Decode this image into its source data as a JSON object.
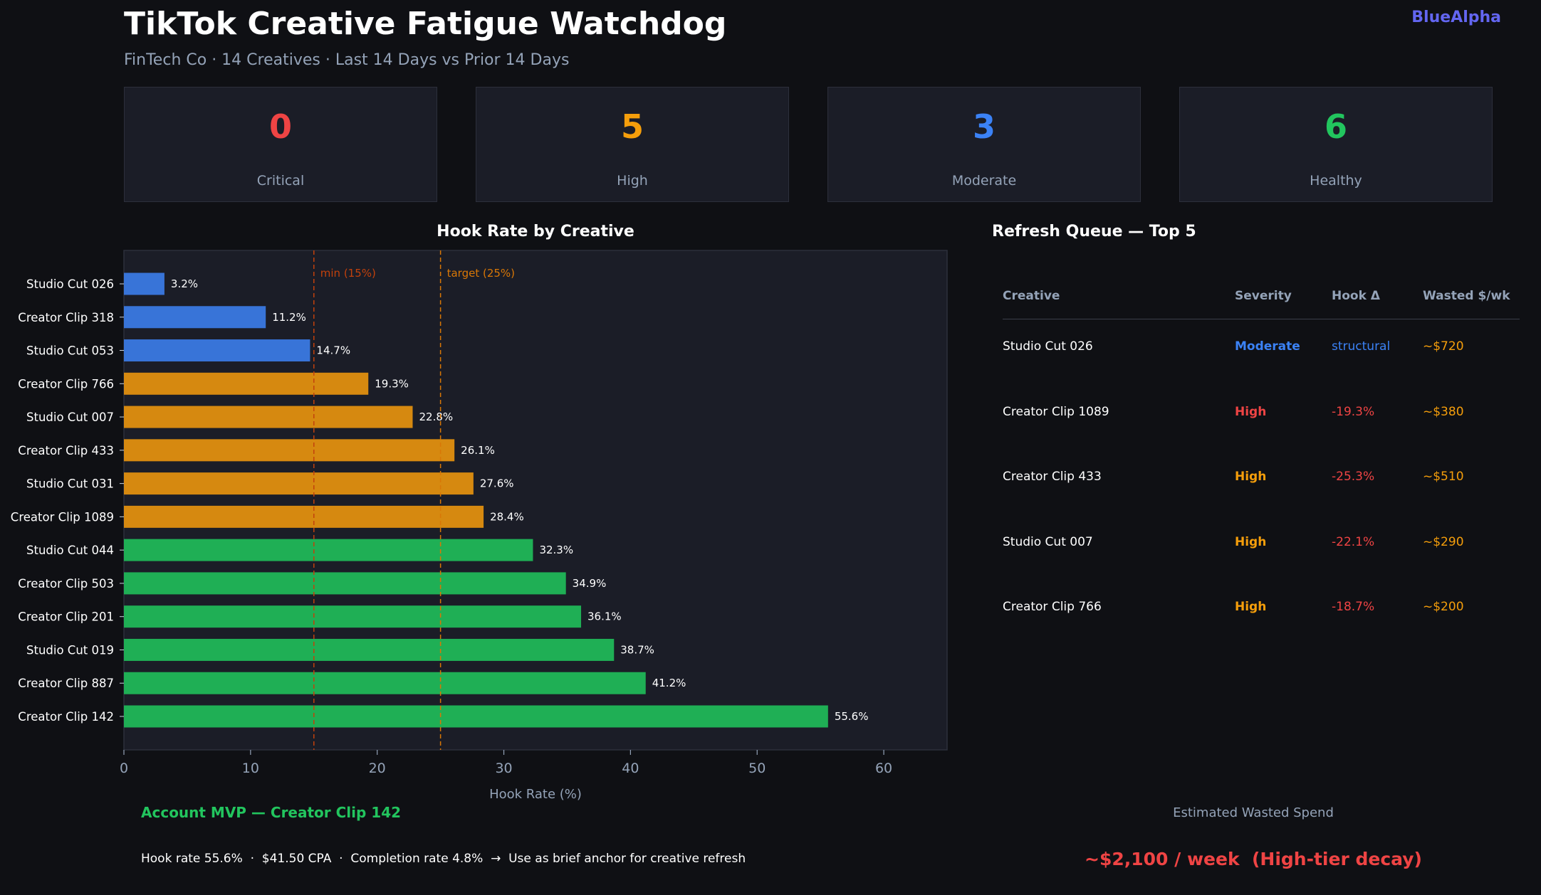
{
  "header": {
    "title": "TikTok Creative Fatigue Watchdog",
    "subtitle": "FinTech Co · 14 Creatives · Last 14 Days vs Prior 14 Days",
    "brand": "BlueAlpha"
  },
  "summary_cards": [
    {
      "value": "0",
      "label": "Critical",
      "color": "#ef4444"
    },
    {
      "value": "5",
      "label": "High",
      "color": "#f59e0b"
    },
    {
      "value": "3",
      "label": "Moderate",
      "color": "#3b82f6"
    },
    {
      "value": "6",
      "label": "Healthy",
      "color": "#22c55e"
    }
  ],
  "chart_data": {
    "type": "bar",
    "orientation": "horizontal",
    "title": "Hook Rate by Creative",
    "xlabel": "Hook Rate (%)",
    "ylabel": "",
    "xlim": [
      0,
      65
    ],
    "xticks": [
      0,
      10,
      20,
      30,
      40,
      50,
      60
    ],
    "grid": false,
    "categories": [
      "Studio Cut 026",
      "Creator Clip 318",
      "Studio Cut 053",
      "Creator Clip 766",
      "Studio Cut 007",
      "Creator Clip 433",
      "Studio Cut 031",
      "Creator Clip 1089",
      "Studio Cut 044",
      "Creator Clip 503",
      "Creator Clip 201",
      "Studio Cut 019",
      "Creator Clip 887",
      "Creator Clip 142"
    ],
    "values": [
      3.2,
      11.2,
      14.7,
      19.3,
      22.8,
      26.1,
      27.6,
      28.4,
      32.3,
      34.9,
      36.1,
      38.7,
      41.2,
      55.6
    ],
    "value_labels": [
      "3.2%",
      "11.2%",
      "14.7%",
      "19.3%",
      "22.8%",
      "26.1%",
      "27.6%",
      "28.4%",
      "32.3%",
      "34.9%",
      "36.1%",
      "38.7%",
      "41.2%",
      "55.6%"
    ],
    "bar_colors": [
      "#3874d8",
      "#3874d8",
      "#3874d8",
      "#d68910",
      "#d68910",
      "#d68910",
      "#d68910",
      "#d68910",
      "#1faf55",
      "#1faf55",
      "#1faf55",
      "#1faf55",
      "#1faf55",
      "#1faf55"
    ],
    "reference_lines": [
      {
        "x": 15,
        "label": "min (15%)",
        "color": "#c2410c"
      },
      {
        "x": 25,
        "label": "target (25%)",
        "color": "#d97706"
      }
    ]
  },
  "refresh_queue": {
    "title": "Refresh Queue — Top 5",
    "headers": [
      "Creative",
      "Severity",
      "Hook Δ",
      "Wasted $/wk"
    ],
    "rows": [
      {
        "creative": "Studio Cut 026",
        "severity": "Moderate",
        "severity_color": "#3b82f6",
        "hook_delta": "structural",
        "delta_color": "#3b82f6",
        "wasted": "~$720"
      },
      {
        "creative": "Creator Clip 1089",
        "severity": "High",
        "severity_color": "#ef4444",
        "hook_delta": "-19.3%",
        "delta_color": "#ef4444",
        "wasted": "~$380"
      },
      {
        "creative": "Creator Clip 433",
        "severity": "High",
        "severity_color": "#f59e0b",
        "hook_delta": "-25.3%",
        "delta_color": "#ef4444",
        "wasted": "~$510"
      },
      {
        "creative": "Studio Cut 007",
        "severity": "High",
        "severity_color": "#f59e0b",
        "hook_delta": "-22.1%",
        "delta_color": "#ef4444",
        "wasted": "~$290"
      },
      {
        "creative": "Creator Clip 766",
        "severity": "High",
        "severity_color": "#f59e0b",
        "hook_delta": "-18.7%",
        "delta_color": "#ef4444",
        "wasted": "~$200"
      }
    ],
    "wasted_color": "#f59e0b"
  },
  "mvp": {
    "title": "Account MVP — Creator Clip 142",
    "detail": "Hook rate 55.6%  ·  $41.50 CPA  ·  Completion rate 4.8%  →  Use as brief anchor for creative refresh"
  },
  "waste": {
    "label": "Estimated Wasted Spend",
    "value": "~$2,100 / week  (High-tier decay)"
  }
}
